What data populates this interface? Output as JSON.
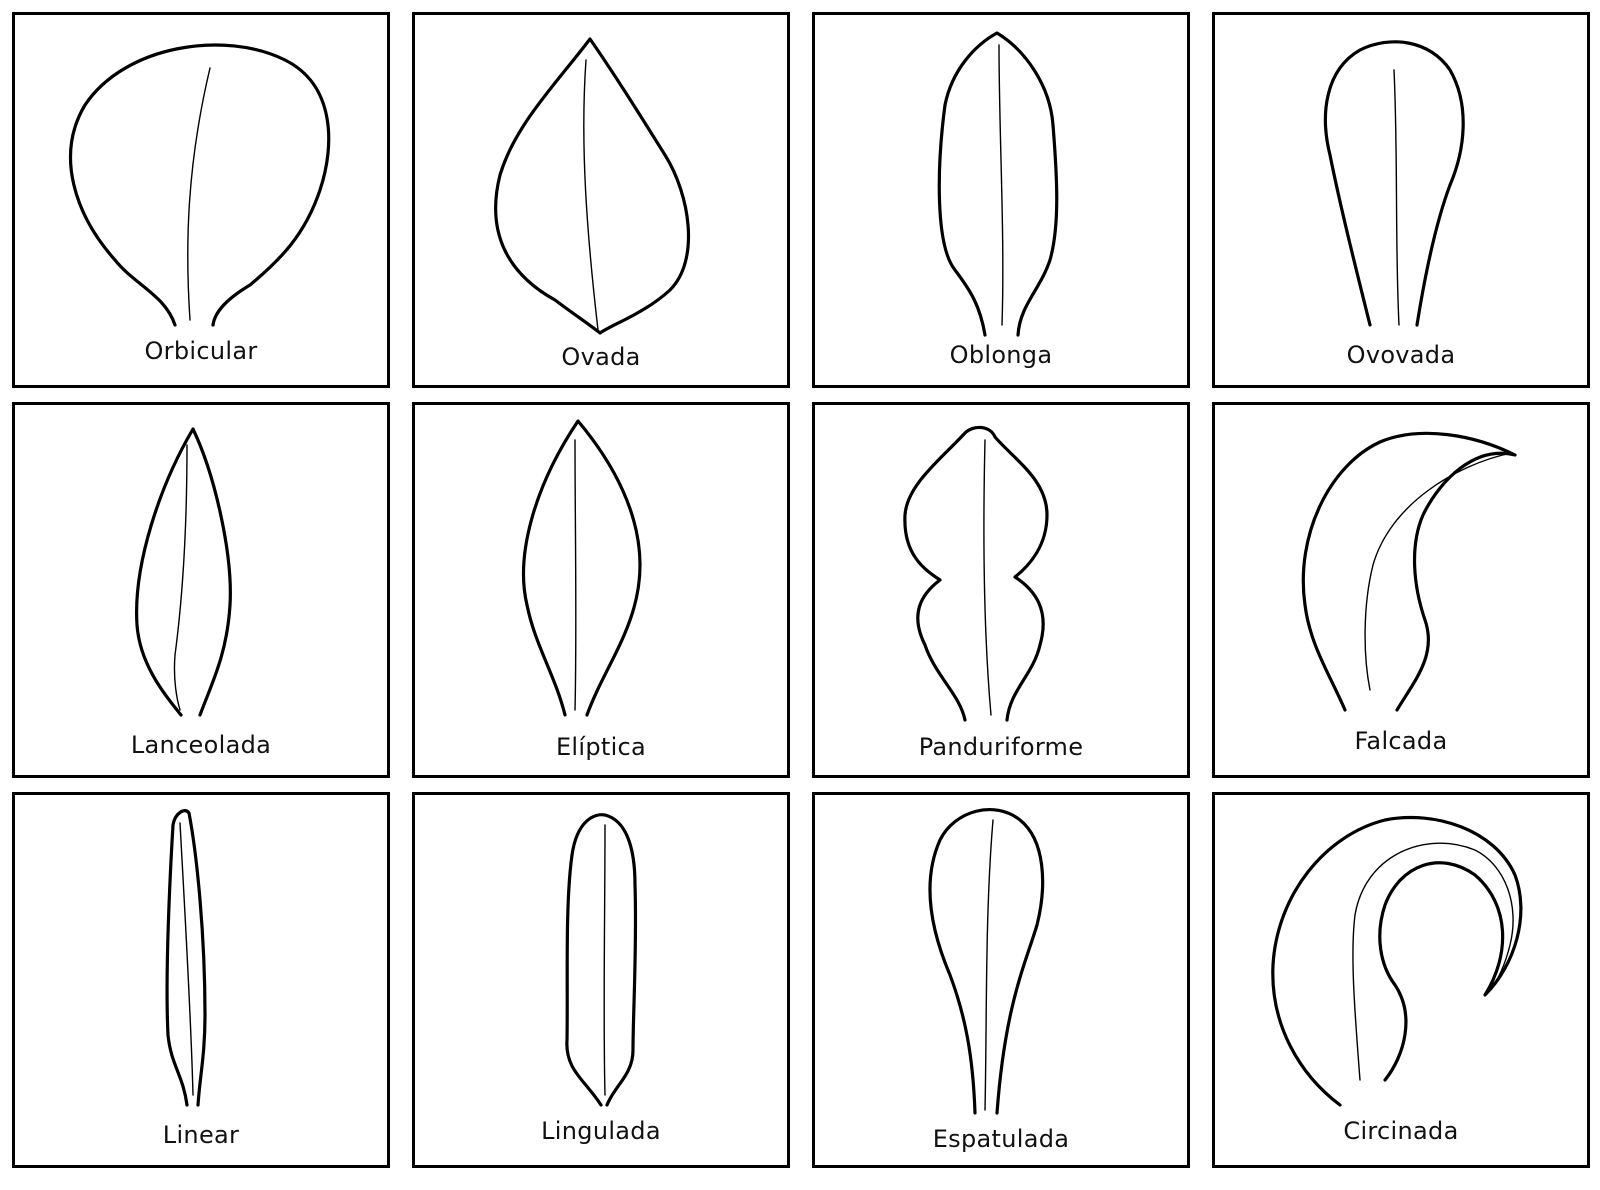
{
  "shapes": [
    {
      "label": "Orbicular"
    },
    {
      "label": "Ovada"
    },
    {
      "label": "Oblonga"
    },
    {
      "label": "Ovovada"
    },
    {
      "label": "Lanceolada"
    },
    {
      "label": "Elíptica"
    },
    {
      "label": "Panduriforme"
    },
    {
      "label": "Falcada"
    },
    {
      "label": "Linear"
    },
    {
      "label": "Lingulada"
    },
    {
      "label": "Espatulada"
    },
    {
      "label": "Circinada"
    }
  ]
}
